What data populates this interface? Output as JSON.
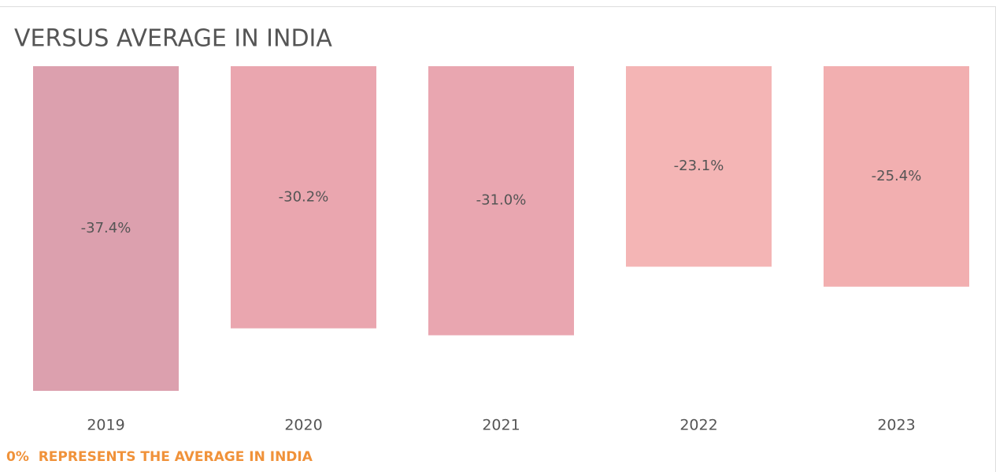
{
  "chart_data": {
    "type": "bar",
    "title": "VERSUS AVERAGE IN INDIA",
    "categories": [
      "2019",
      "2020",
      "2021",
      "2022",
      "2023"
    ],
    "values": [
      -37.4,
      -30.2,
      -31.0,
      -23.1,
      -25.4
    ],
    "value_labels": [
      "-37.4%",
      "-30.2%",
      "-31.0%",
      "-23.1%",
      "-25.4%"
    ],
    "colors": [
      "#dca0ae",
      "#eaa6af",
      "#e9a6b0",
      "#f4b5b5",
      "#f2afb0"
    ],
    "note": "0%  REPRESENTS THE AVERAGE IN INDIA"
  }
}
